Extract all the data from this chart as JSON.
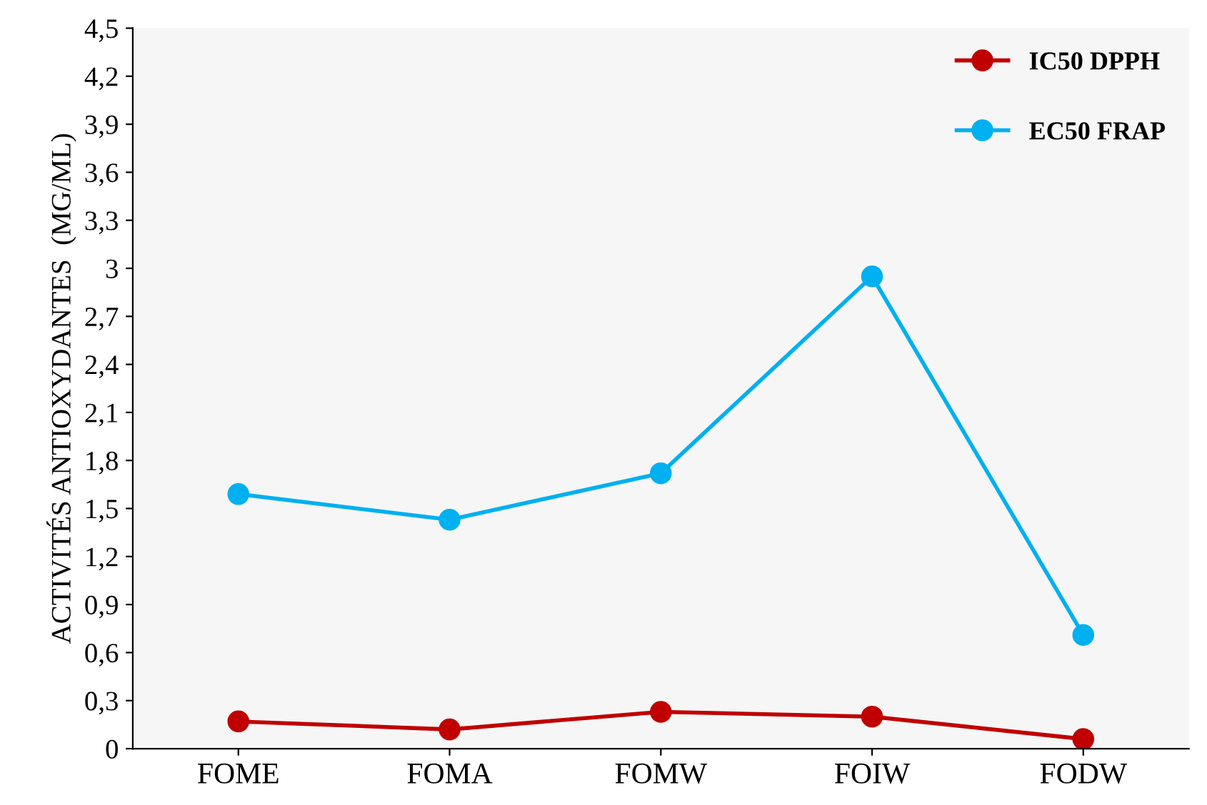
{
  "chart_data": {
    "type": "line",
    "ylabel": "ACTIVITÉS ANTIOXYDANTES  (MG/ML)",
    "categories": [
      "FOME",
      "FOMA",
      "FOMW",
      "FOIW",
      "FODW"
    ],
    "series": [
      {
        "name": "IC50 DPPH",
        "color": "#c00000",
        "values": [
          0.17,
          0.12,
          0.23,
          0.2,
          0.06
        ]
      },
      {
        "name": "EC50 FRAP",
        "color": "#00b0f0",
        "values": [
          1.59,
          1.43,
          1.72,
          2.95,
          0.71
        ]
      }
    ],
    "ylim": [
      0,
      4.5
    ],
    "yticks": [
      0,
      {
        "value": 0.3,
        "label": "0,3"
      },
      {
        "value": 0.6,
        "label": "0,6"
      },
      {
        "value": 0.9,
        "label": "0,9"
      },
      {
        "value": 1.2,
        "label": "1,2"
      },
      {
        "value": 1.5,
        "label": "1,5"
      },
      {
        "value": 1.8,
        "label": "1,8"
      },
      {
        "value": 2.1,
        "label": "2,1"
      },
      {
        "value": 2.4,
        "label": "2,4"
      },
      {
        "value": 2.7,
        "label": "2,7"
      },
      3,
      {
        "value": 3.3,
        "label": "3,3"
      },
      {
        "value": 3.6,
        "label": "3,6"
      },
      {
        "value": 3.9,
        "label": "3,9"
      },
      {
        "value": 4.2,
        "label": "4,2"
      },
      {
        "value": 4.5,
        "label": "4,5"
      }
    ],
    "grid": false,
    "legend": "top right",
    "marker": "circle",
    "line_style": "solid"
  }
}
